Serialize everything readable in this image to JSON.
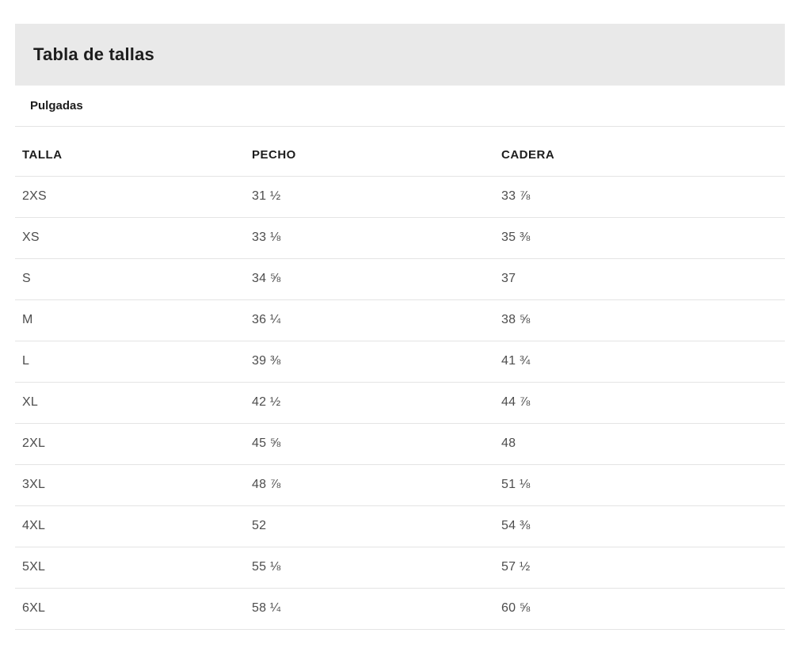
{
  "header": {
    "title": "Tabla de tallas"
  },
  "units": {
    "selected": "Pulgadas"
  },
  "table": {
    "columns": [
      "TALLA",
      "PECHO",
      "CADERA"
    ],
    "rows": [
      {
        "talla": "2XS",
        "pecho": "31 ½",
        "cadera": "33 ⅞"
      },
      {
        "talla": "XS",
        "pecho": "33 ⅛",
        "cadera": "35 ⅜"
      },
      {
        "talla": "S",
        "pecho": "34 ⅝",
        "cadera": "37"
      },
      {
        "talla": "M",
        "pecho": "36 ¼",
        "cadera": "38 ⅝"
      },
      {
        "talla": "L",
        "pecho": "39 ⅜",
        "cadera": "41 ¾"
      },
      {
        "talla": "XL",
        "pecho": "42 ½",
        "cadera": "44 ⅞"
      },
      {
        "talla": "2XL",
        "pecho": "45 ⅝",
        "cadera": "48"
      },
      {
        "talla": "3XL",
        "pecho": "48 ⅞",
        "cadera": "51 ⅛"
      },
      {
        "talla": "4XL",
        "pecho": "52",
        "cadera": "54 ⅜"
      },
      {
        "talla": "5XL",
        "pecho": "55 ⅛",
        "cadera": "57 ½"
      },
      {
        "talla": "6XL",
        "pecho": "58 ¼",
        "cadera": "60 ⅝"
      }
    ]
  },
  "colors": {
    "header_bar_bg": "#e9e9e9",
    "title_text": "#1d1d1d",
    "cell_text": "#4d4d4d",
    "divider": "#e4e4e4"
  }
}
